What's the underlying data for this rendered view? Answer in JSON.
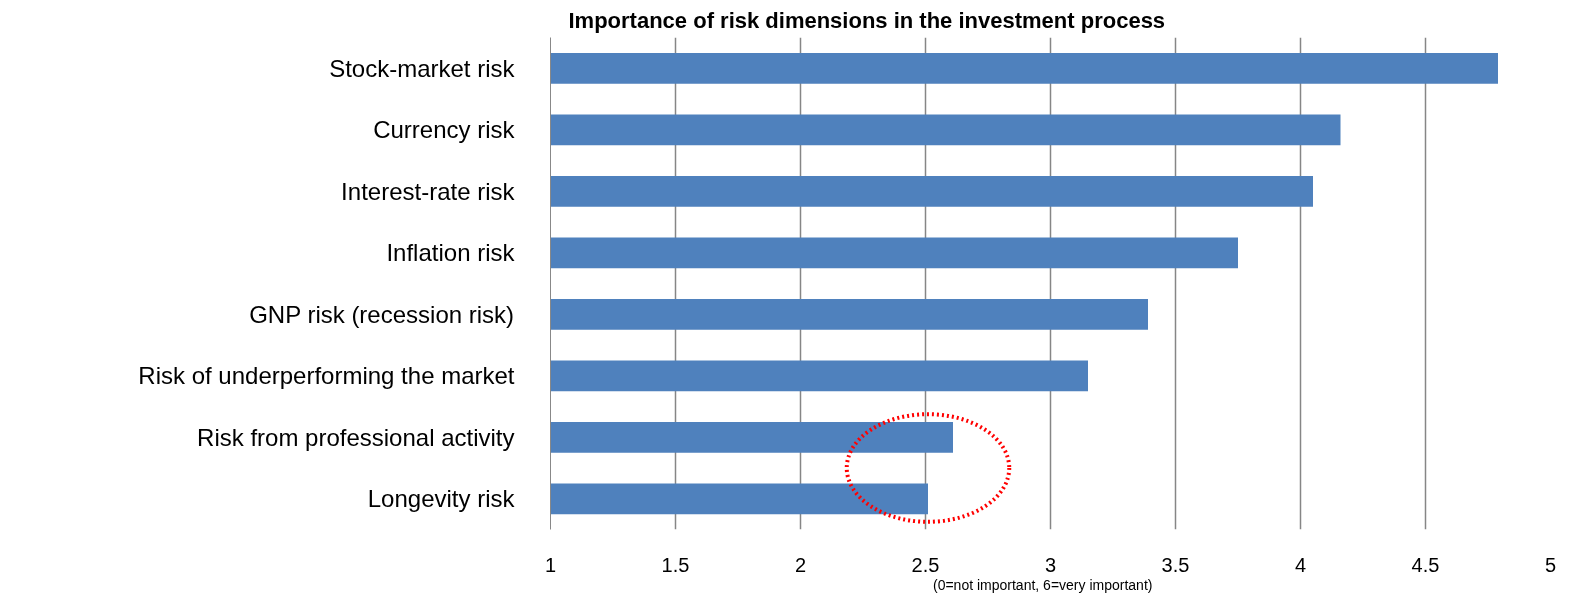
{
  "chart_data": {
    "type": "bar",
    "orientation": "horizontal",
    "title": "Importance of risk dimensions in the investment process",
    "xlabel": "(0=not important,     6=very important)",
    "categories": [
      "Stock-market risk",
      "Currency risk",
      "Interest-rate risk",
      "Inflation risk",
      "GNP risk (recession risk)",
      "Risk of underperforming the market",
      "Risk from professional activity",
      "Longevity risk"
    ],
    "values": [
      4.79,
      4.16,
      4.05,
      3.75,
      3.39,
      3.15,
      2.61,
      2.51
    ],
    "color": "#4f81bd",
    "xlim": [
      1,
      5
    ],
    "xticks": [
      1,
      1.5,
      2,
      2.5,
      3,
      3.5,
      4,
      4.5,
      5
    ],
    "grid": "x"
  }
}
